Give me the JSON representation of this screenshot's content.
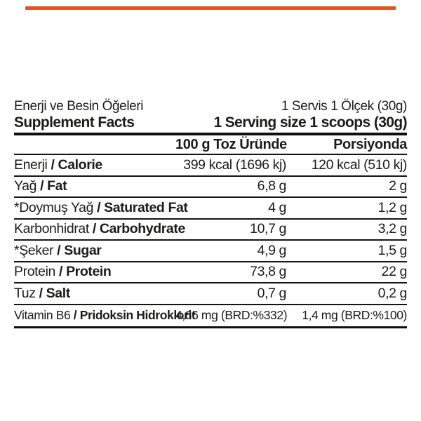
{
  "page": {
    "background": "#ffffff",
    "accent_color": "#e8511d",
    "text_color": "#1d1c1a"
  },
  "header": {
    "title_tr": "Enerji ve Besin Öğeleri",
    "serving_tr": "1 Servis 1 Ölçek (30g)",
    "title_en": "Supplement Facts",
    "serving_en": "1 Serving size 1 scoops (30g)"
  },
  "columns": {
    "per_100g": "100 g Toz Üründe",
    "per_portion": "Porsiyonda"
  },
  "rows": [
    {
      "label_tr": "Enerji",
      "label_en": "/ Calorie",
      "per100": "399 kcal (1696 kj)",
      "portion": "120 kcal (510 kj)"
    },
    {
      "label_tr": "Yağ",
      "label_en": "/ Fat",
      "per100": "6,8 g",
      "portion": "2 g"
    },
    {
      "label_tr": "*Doymuş Yağ",
      "label_en": "/ Saturated Fat",
      "per100": "4 g",
      "portion": "1,2 g"
    },
    {
      "label_tr": "Karbonhidrat",
      "label_en": "/ Carbohydrate",
      "per100": "10,7 g",
      "portion": "3,2 g"
    },
    {
      "label_tr": "*Şeker",
      "label_en": "/ Sugar",
      "per100": "4,9 g",
      "portion": "1,5 g"
    },
    {
      "label_tr": "Protein",
      "label_en": "/ Protein",
      "per100": "73,8 g",
      "portion": "22 g"
    },
    {
      "label_tr": "Tuz",
      "label_en": "/ Salt",
      "per100": "0,7 g",
      "portion": "0,2 g"
    },
    {
      "label_tr": "Vitamin B6",
      "label_en": "/ Pridoksin Hidroklorit",
      "per100": "4,66 mg (BRD:%332)",
      "portion": "1,4 mg (BRD:%100)"
    }
  ]
}
